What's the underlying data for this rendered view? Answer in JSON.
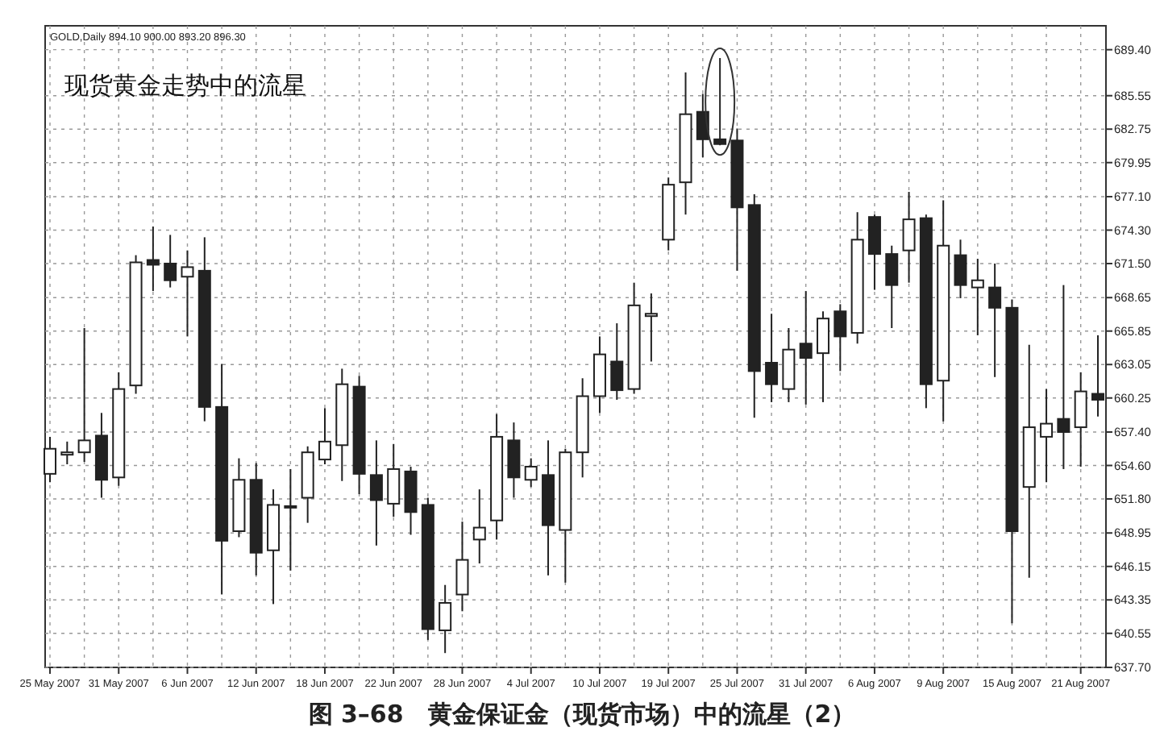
{
  "chart_data": {
    "type": "candlestick",
    "title": "图 3–68　黄金保证金（现货市场）中的流星（2）",
    "annotations": [
      "GOLD,Daily 894.10 900.00 893.20 896.30",
      "现货黄金走势中的流星"
    ],
    "categories": [
      "25 May 2007",
      null,
      null,
      null,
      "31 May 2007",
      null,
      null,
      null,
      "6 Jun 2007",
      null,
      null,
      null,
      "12 Jun 2007",
      null,
      null,
      null,
      "18 Jun 2007",
      null,
      null,
      null,
      "22 Jun 2007",
      null,
      null,
      null,
      "28 Jun 2007",
      null,
      null,
      null,
      "4 Jul 2007",
      null,
      null,
      null,
      "10 Jul 2007",
      null,
      null,
      null,
      "19 Jul 2007",
      null,
      null,
      null,
      "25 Jul 2007",
      null,
      null,
      null,
      "31 Jul 2007",
      null,
      null,
      null,
      "6 Aug 2007",
      null,
      null,
      null,
      "9 Aug 2007",
      null,
      null,
      null,
      "15 Aug 2007",
      null,
      null,
      null,
      "21 Aug 2007",
      null
    ],
    "ohlc": [
      [
        653.9,
        657.0,
        653.2,
        656.0
      ],
      [
        655.5,
        656.6,
        654.7,
        655.7
      ],
      [
        655.7,
        666.1,
        654.9,
        656.7
      ],
      [
        657.1,
        659.0,
        651.9,
        653.4
      ],
      [
        653.6,
        662.4,
        652.9,
        661.0
      ],
      [
        661.3,
        672.2,
        660.6,
        671.6
      ],
      [
        671.8,
        674.6,
        669.2,
        671.4
      ],
      [
        671.5,
        673.9,
        669.5,
        670.1
      ],
      [
        670.4,
        672.6,
        665.4,
        671.2
      ],
      [
        670.9,
        673.7,
        658.3,
        659.5
      ],
      [
        659.5,
        663.1,
        643.8,
        648.3
      ],
      [
        649.1,
        655.2,
        648.6,
        653.4
      ],
      [
        653.4,
        654.8,
        645.4,
        647.3
      ],
      [
        647.5,
        652.6,
        643.0,
        651.3
      ],
      [
        651.1,
        654.3,
        645.8,
        651.2
      ],
      [
        651.9,
        656.2,
        649.8,
        655.7
      ],
      [
        655.1,
        659.4,
        654.7,
        656.6
      ],
      [
        656.3,
        662.7,
        653.3,
        661.4
      ],
      [
        661.2,
        662.1,
        652.2,
        653.9
      ],
      [
        653.8,
        656.7,
        647.9,
        651.7
      ],
      [
        651.4,
        656.4,
        650.3,
        654.3
      ],
      [
        654.1,
        654.5,
        648.8,
        650.7
      ],
      [
        651.3,
        651.9,
        640.0,
        640.9
      ],
      [
        640.8,
        644.6,
        638.9,
        643.1
      ],
      [
        643.8,
        649.9,
        642.4,
        646.7
      ],
      [
        648.4,
        652.6,
        646.4,
        649.4
      ],
      [
        650.0,
        658.9,
        648.4,
        657.0
      ],
      [
        656.7,
        658.2,
        651.9,
        653.6
      ],
      [
        653.4,
        655.2,
        652.8,
        654.5
      ],
      [
        653.8,
        656.7,
        645.4,
        649.6
      ],
      [
        649.2,
        656.0,
        644.8,
        655.7
      ],
      [
        655.7,
        661.9,
        653.6,
        660.4
      ],
      [
        660.4,
        665.4,
        659.0,
        663.9
      ],
      [
        663.3,
        666.5,
        660.1,
        660.9
      ],
      [
        661.0,
        669.9,
        660.6,
        668.0
      ],
      [
        667.1,
        669.0,
        663.3,
        667.3
      ],
      [
        673.5,
        678.7,
        672.6,
        678.1
      ],
      [
        678.3,
        687.5,
        675.6,
        684.0
      ],
      [
        684.2,
        685.7,
        680.4,
        681.9
      ],
      [
        681.9,
        688.7,
        681.4,
        681.5
      ],
      [
        681.8,
        682.8,
        670.9,
        676.2
      ],
      [
        676.4,
        677.3,
        658.6,
        662.5
      ],
      [
        663.2,
        667.3,
        659.9,
        661.4
      ],
      [
        661.0,
        666.1,
        659.9,
        664.3
      ],
      [
        664.8,
        669.2,
        659.7,
        663.6
      ],
      [
        664.0,
        667.5,
        659.9,
        666.9
      ],
      [
        667.5,
        668.1,
        662.5,
        665.4
      ],
      [
        665.7,
        675.8,
        664.8,
        673.5
      ],
      [
        675.4,
        675.6,
        669.3,
        672.3
      ],
      [
        672.3,
        673.0,
        666.1,
        669.7
      ],
      [
        672.6,
        677.5,
        669.9,
        675.2
      ],
      [
        675.3,
        675.6,
        659.4,
        661.4
      ],
      [
        661.7,
        676.8,
        658.3,
        673.0
      ],
      [
        672.2,
        673.5,
        668.6,
        669.7
      ],
      [
        669.5,
        671.9,
        665.5,
        670.1
      ],
      [
        669.5,
        671.5,
        662.0,
        667.8
      ],
      [
        667.8,
        668.5,
        641.4,
        649.1
      ],
      [
        652.8,
        664.7,
        645.2,
        657.8
      ],
      [
        657.0,
        661.0,
        653.2,
        658.1
      ],
      [
        658.5,
        669.7,
        654.3,
        657.4
      ],
      [
        657.8,
        662.4,
        654.5,
        660.8
      ],
      [
        660.6,
        665.5,
        658.7,
        660.1
      ]
    ],
    "ylim": [
      637.7,
      691.4
    ],
    "yticks": [
      {
        "value": 689.4,
        "label": "689.40"
      },
      {
        "value": 685.55,
        "label": "685.55"
      },
      {
        "value": 682.75,
        "label": "682.75"
      },
      {
        "value": 679.95,
        "label": "679.95"
      },
      {
        "value": 677.1,
        "label": "677.10"
      },
      {
        "value": 674.3,
        "label": "674.30"
      },
      {
        "value": 671.5,
        "label": "671.50"
      },
      {
        "value": 668.65,
        "label": "668.65"
      },
      {
        "value": 665.85,
        "label": "665.85"
      },
      {
        "value": 663.05,
        "label": "663.05"
      },
      {
        "value": 660.25,
        "label": "660.25"
      },
      {
        "value": 657.4,
        "label": "657.40"
      },
      {
        "value": 654.6,
        "label": "654.60"
      },
      {
        "value": 651.8,
        "label": "651.80"
      },
      {
        "value": 648.95,
        "label": "648.95"
      },
      {
        "value": 646.15,
        "label": "646.15"
      },
      {
        "value": 643.35,
        "label": "643.35"
      },
      {
        "value": 640.55,
        "label": "640.55"
      },
      {
        "value": 637.7,
        "label": "637.70"
      }
    ],
    "grid": true
  }
}
